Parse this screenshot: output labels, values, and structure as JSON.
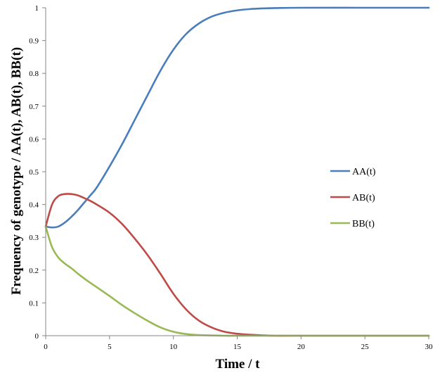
{
  "chart_data": {
    "type": "line",
    "title": "",
    "xlabel": "Time  /  t",
    "ylabel": "Frequency of genotype / AA(t), AB(t), BB(t)",
    "xlim": [
      0,
      30
    ],
    "ylim": [
      0,
      1
    ],
    "xticks": [
      "0",
      "5",
      "10",
      "15",
      "20",
      "25",
      "30"
    ],
    "yticks": [
      "0",
      "0.1",
      "0.2",
      "0.3",
      "0.4",
      "0.5",
      "0.6",
      "0.7",
      "0.8",
      "0.9",
      "1"
    ],
    "grid": false,
    "legend_position": "right",
    "x": [
      0,
      0.5,
      1,
      1.5,
      2,
      2.5,
      3,
      3.5,
      4,
      5,
      6,
      7,
      8,
      9,
      10,
      11,
      12,
      13,
      14,
      15,
      16,
      17,
      18,
      20,
      25,
      30
    ],
    "series": [
      {
        "name": "AA(t)",
        "color": "#4a7ebb",
        "values": [
          0.333,
          0.33,
          0.333,
          0.345,
          0.362,
          0.382,
          0.405,
          0.428,
          0.452,
          0.516,
          0.585,
          0.66,
          0.735,
          0.809,
          0.872,
          0.92,
          0.952,
          0.973,
          0.985,
          0.992,
          0.996,
          0.998,
          0.999,
          1.0,
          1.0,
          1.0
        ]
      },
      {
        "name": "AB(t)",
        "color": "#be4b48",
        "values": [
          0.333,
          0.4,
          0.426,
          0.432,
          0.432,
          0.428,
          0.42,
          0.411,
          0.4,
          0.375,
          0.34,
          0.295,
          0.245,
          0.188,
          0.128,
          0.08,
          0.046,
          0.025,
          0.012,
          0.006,
          0.003,
          0.001,
          0.0,
          0.0,
          0.0,
          0.0
        ]
      },
      {
        "name": "BB(t)",
        "color": "#98b954",
        "values": [
          0.333,
          0.27,
          0.238,
          0.22,
          0.206,
          0.19,
          0.175,
          0.161,
          0.148,
          0.121,
          0.093,
          0.068,
          0.045,
          0.025,
          0.012,
          0.005,
          0.002,
          0.001,
          0.0,
          0.0,
          0.0,
          0.0,
          0.0,
          0.0,
          0.0,
          0.0
        ]
      }
    ]
  }
}
